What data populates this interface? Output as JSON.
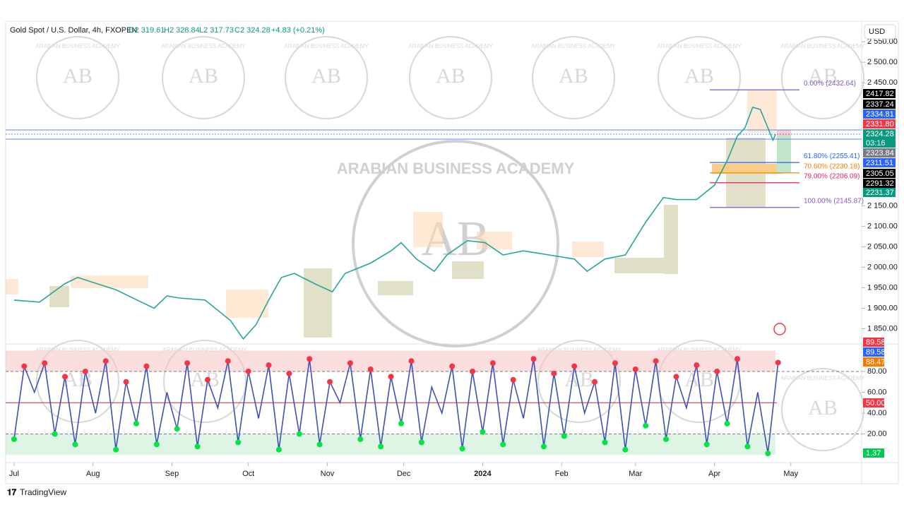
{
  "header": {
    "symbol": "Gold Spot / U.S. Dollar, 4h, FXOPEN",
    "open": "O2 319.61",
    "high": "H2 328.84",
    "low": "L2 317.73",
    "close": "C2 324.28",
    "change": "+4.83 (+0.21%)",
    "currency": "USD"
  },
  "watermark": {
    "name": "ARABIAN BUSINESS ACADEMY",
    "logo": "AB"
  },
  "footer": "TradingView",
  "chart_data": {
    "type": "line",
    "xlim": [
      -3.3,
      332.8
    ],
    "xticks": [
      {
        "value": 0,
        "label": "Jul"
      },
      {
        "value": 31,
        "label": "Aug"
      },
      {
        "value": 62,
        "label": "Sep"
      },
      {
        "value": 92,
        "label": "Oct"
      },
      {
        "value": 123,
        "label": "Nov"
      },
      {
        "value": 153,
        "label": "Dec"
      },
      {
        "value": 184,
        "label": "2024"
      },
      {
        "value": 215,
        "label": "Feb"
      },
      {
        "value": 244,
        "label": "Mar"
      },
      {
        "value": 275,
        "label": "Apr"
      },
      {
        "value": 305,
        "label": "May"
      }
    ],
    "ylim": [
      1825,
      2583
    ],
    "yticks": [
      {
        "value": 1850,
        "label": "1 850.00"
      },
      {
        "value": 1900,
        "label": "1 900.00"
      },
      {
        "value": 1950,
        "label": "1 950.00"
      },
      {
        "value": 2000,
        "label": "2 000.00"
      },
      {
        "value": 2050,
        "label": "2 050.00"
      },
      {
        "value": 2100,
        "label": "2 100.00"
      },
      {
        "value": 2150,
        "label": "2 150.00"
      },
      {
        "value": 2450,
        "label": "2 450.00"
      },
      {
        "value": 2500,
        "label": "2 500.00"
      },
      {
        "value": 2550,
        "label": "2 550.00"
      }
    ],
    "series": [
      {
        "name": "Gold Spot",
        "color": "#26a69a",
        "x": [
          0,
          10,
          20,
          25,
          30,
          40,
          50,
          55,
          60,
          65,
          75,
          85,
          90,
          95,
          100,
          105,
          110,
          118,
          125,
          130,
          140,
          148,
          152,
          158,
          165,
          170,
          178,
          185,
          192,
          200,
          210,
          220,
          225,
          232,
          240,
          248,
          255,
          260,
          268,
          275,
          280,
          284,
          287,
          290,
          293,
          296,
          298,
          299
        ],
        "values": [
          1920,
          1915,
          1960,
          1975,
          1965,
          1945,
          1915,
          1900,
          1930,
          1925,
          1920,
          1870,
          1825,
          1860,
          1920,
          1975,
          1985,
          1960,
          1940,
          1985,
          2010,
          2040,
          2060,
          2020,
          1990,
          2030,
          2065,
          2060,
          2030,
          2040,
          2030,
          2020,
          1990,
          2020,
          2030,
          2110,
          2170,
          2165,
          2165,
          2200,
          2260,
          2320,
          2340,
          2390,
          2385,
          2340,
          2310,
          2324.28
        ]
      }
    ],
    "fib": [
      {
        "value": 2432.64,
        "label": "0.00% (2432.64)",
        "color": "#7e57c2"
      },
      {
        "value": 2255.41,
        "label": "61.80% (2255.41)",
        "color": "#2962ff"
      },
      {
        "value": 2230.18,
        "label": "70.60% (2230.18)",
        "color": "#f57c00"
      },
      {
        "value": 2206.09,
        "label": "79.00% (2206.09)",
        "color": "#e91e63"
      },
      {
        "value": 2145.87,
        "label": "100.00% (2145.87)",
        "color": "#7e57c2"
      }
    ],
    "price_tags": [
      {
        "label": "2417.82",
        "color": "#000000"
      },
      {
        "label": "2337.24",
        "color": "#000000"
      },
      {
        "label": "2334.81",
        "color": "#2962ff"
      },
      {
        "label": "2331.80",
        "color": "#f23645"
      },
      {
        "label": "2324.28",
        "color": "#089981"
      },
      {
        "label": "03:16",
        "color": "#089981"
      },
      {
        "label": "2323.84",
        "color": "#787b86"
      },
      {
        "label": "2311.51",
        "color": "#2962ff"
      },
      {
        "label": "2305.05",
        "color": "#000000"
      },
      {
        "label": "2291.32",
        "color": "#000000"
      },
      {
        "label": "2231.37",
        "color": "#089981"
      }
    ],
    "oscillator": {
      "color": "#3f51b5",
      "overbought": 80,
      "oversold": 20,
      "mid": 50,
      "ylim": [
        -4,
        103
      ],
      "yticks": [
        {
          "value": 20,
          "label": "20.00"
        },
        {
          "value": 40,
          "label": "40.00"
        },
        {
          "value": 60,
          "label": "60.00"
        },
        {
          "value": 80,
          "label": "80.00"
        }
      ],
      "x": [
        0,
        4,
        8,
        12,
        16,
        20,
        24,
        28,
        32,
        36,
        40,
        44,
        48,
        52,
        56,
        60,
        64,
        68,
        72,
        76,
        80,
        84,
        88,
        92,
        96,
        100,
        104,
        108,
        112,
        116,
        120,
        124,
        128,
        132,
        136,
        140,
        144,
        148,
        152,
        156,
        160,
        164,
        168,
        172,
        176,
        180,
        184,
        188,
        192,
        196,
        200,
        204,
        208,
        212,
        216,
        220,
        224,
        228,
        232,
        236,
        240,
        244,
        248,
        252,
        256,
        260,
        264,
        268,
        272,
        276,
        280,
        284,
        288,
        292,
        296,
        300
      ],
      "values": [
        15,
        85,
        60,
        88,
        20,
        75,
        10,
        80,
        40,
        90,
        5,
        70,
        30,
        85,
        10,
        60,
        25,
        88,
        8,
        72,
        45,
        90,
        12,
        80,
        35,
        86,
        5,
        78,
        20,
        92,
        10,
        70,
        50,
        88,
        15,
        82,
        8,
        75,
        30,
        90,
        12,
        65,
        40,
        85,
        6,
        80,
        22,
        88,
        10,
        72,
        35,
        92,
        8,
        78,
        18,
        85,
        40,
        70,
        12,
        88,
        5,
        82,
        28,
        90,
        15,
        75,
        45,
        86,
        10,
        80,
        30,
        92,
        8,
        60,
        1.37,
        88.47
      ],
      "tags": [
        {
          "label": "89.58",
          "color": "#f23645"
        },
        {
          "label": "89.58",
          "color": "#2962ff"
        },
        {
          "label": "88.47",
          "color": "#f57c00"
        },
        {
          "label": "50.00",
          "color": "#f23645"
        },
        {
          "label": "1.37",
          "color": "#00c853"
        }
      ]
    }
  }
}
